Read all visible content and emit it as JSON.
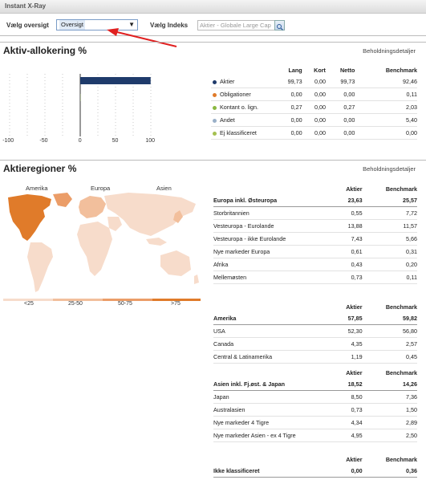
{
  "app": {
    "title": "Instant X-Ray"
  },
  "toolbar": {
    "overview_label": "Vælg oversigt",
    "overview_value": "Oversigt",
    "index_label": "Vælg Indeks",
    "index_value": "Aktier - Globale Large Cap"
  },
  "allocation": {
    "title": "Aktiv-allokering %",
    "link": "Beholdningsdetaljer",
    "axis_ticks": [
      "-100",
      "-50",
      "0",
      "50",
      "100"
    ],
    "headers": [
      "Lang",
      "Kort",
      "Netto",
      "Benchmark"
    ],
    "rows": [
      {
        "label": "Aktier",
        "color": "#1f3b6b",
        "values": [
          "99,73",
          "0,00",
          "99,73",
          "92,46"
        ]
      },
      {
        "label": "Obligationer",
        "color": "#e07b2a",
        "values": [
          "0,00",
          "0,00",
          "0,00",
          "0,11"
        ]
      },
      {
        "label": "Kontant o. lign.",
        "color": "#8ab840",
        "values": [
          "0,27",
          "0,00",
          "0,27",
          "2,03"
        ]
      },
      {
        "label": "Andet",
        "color": "#9ab0c8",
        "values": [
          "0,00",
          "0,00",
          "0,00",
          "5,40"
        ]
      },
      {
        "label": "Ej klassificeret",
        "color": "#a4c050",
        "values": [
          "0,00",
          "0,00",
          "0,00",
          "0,00"
        ]
      }
    ],
    "chart_data": {
      "type": "bar",
      "categories": [
        "Aktier",
        "Obligationer",
        "Kontant o. lign.",
        "Andet",
        "Ej klassificeret"
      ],
      "values": [
        99.73,
        0.0,
        0.27,
        0.0,
        0.0
      ],
      "xlim": [
        -100,
        100
      ]
    }
  },
  "regions": {
    "title": "Aktieregioner %",
    "link": "Beholdningsdetaljer",
    "map_labels": [
      "Amerika",
      "Europa",
      "Asien"
    ],
    "legend": [
      "<25",
      "25-50",
      "50-75",
      ">75"
    ],
    "legend_colors": [
      "#f7dccb",
      "#f2bf9c",
      "#eb9d68",
      "#e07b2a"
    ],
    "col_aktier": "Aktier",
    "col_benchmark": "Benchmark",
    "groups": [
      {
        "name": "Europa inkl. Østeuropa",
        "aktier": "23,63",
        "benchmark": "25,57",
        "rows": [
          {
            "name": "Storbritannien",
            "aktier": "0,55",
            "benchmark": "7,72"
          },
          {
            "name": "Vesteuropa - Eurolande",
            "aktier": "13,88",
            "benchmark": "11,57"
          },
          {
            "name": "Vesteuropa - ikke Eurolande",
            "aktier": "7,43",
            "benchmark": "5,66"
          },
          {
            "name": "Nye markeder Europa",
            "aktier": "0,61",
            "benchmark": "0,31"
          },
          {
            "name": "Afrika",
            "aktier": "0,43",
            "benchmark": "0,20"
          },
          {
            "name": "Mellemøsten",
            "aktier": "0,73",
            "benchmark": "0,11"
          }
        ]
      },
      {
        "name": "Amerika",
        "aktier": "57,85",
        "benchmark": "59,82",
        "rows": [
          {
            "name": "USA",
            "aktier": "52,30",
            "benchmark": "56,80"
          },
          {
            "name": "Canada",
            "aktier": "4,35",
            "benchmark": "2,57"
          },
          {
            "name": "Central & Latinamerika",
            "aktier": "1,19",
            "benchmark": "0,45"
          }
        ]
      },
      {
        "name": "Asien inkl. Fj.øst. & Japan",
        "aktier": "18,52",
        "benchmark": "14,26",
        "rows": [
          {
            "name": "Japan",
            "aktier": "8,50",
            "benchmark": "7,36"
          },
          {
            "name": "Australasien",
            "aktier": "0,73",
            "benchmark": "1,50"
          },
          {
            "name": "Nye markeder 4 Tigre",
            "aktier": "4,34",
            "benchmark": "2,89"
          },
          {
            "name": "Nye markeder Asien - ex 4 Tigre",
            "aktier": "4,95",
            "benchmark": "2,50"
          }
        ]
      },
      {
        "name": "Ikke klassificeret",
        "aktier": "0,00",
        "benchmark": "0,36",
        "rows": []
      }
    ]
  }
}
